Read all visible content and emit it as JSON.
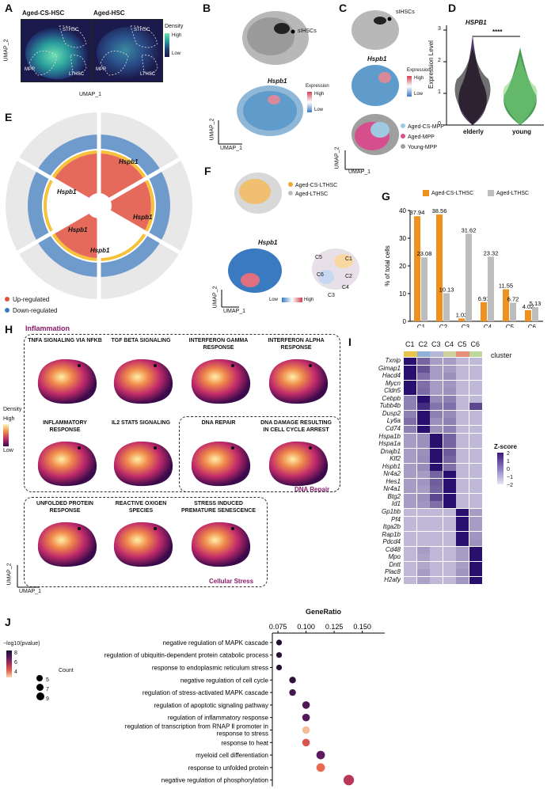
{
  "panels": {
    "A": {
      "label": "A",
      "title_left": "Aged-CS-HSC",
      "title_right": "Aged-HSC",
      "regions": [
        "STHSC",
        "MPP",
        "LTHSC"
      ],
      "legend_title": "Density",
      "legend_high": "High",
      "legend_low": "Low",
      "x_axis": "UMAP_1",
      "y_axis": "UMAP_2"
    },
    "B": {
      "label": "B",
      "annotation": "sIHSCs",
      "gene": "Hspb1",
      "legend_title": "Expression",
      "legend_high": "High",
      "legend_low": "Low",
      "x_axis": "UMAP_1",
      "y_axis": "UMAP_2"
    },
    "C": {
      "label": "C",
      "annotation": "sIHSCs",
      "gene": "Hspb1",
      "legend_title": "Expression",
      "legend_high": "High",
      "legend_low": "Low",
      "groups": [
        "Aged-CS-MPP",
        "Aged-MPP",
        "Young-MPP"
      ],
      "group_colors": [
        "#9fc9e0",
        "#d64f8c",
        "#9f9f9f"
      ],
      "x_axis": "UMAP_1",
      "y_axis": "UMAP_2"
    },
    "D": {
      "label": "D",
      "gene": "HSPB1",
      "y_axis": "Expression Level",
      "significance": "****",
      "groups": [
        "elderly",
        "young"
      ],
      "yticks": [
        "0",
        "1",
        "2",
        "3"
      ]
    },
    "E": {
      "label": "E",
      "gene_labels": [
        "Hspb1",
        "Hspb1",
        "Hspb1",
        "Hspb1",
        "Hspb1"
      ],
      "legend_up": "Up-regulated",
      "legend_down": "Down-regulated"
    },
    "F": {
      "label": "F",
      "groups": [
        "Aged-CS-LTHSC",
        "Aged-LTHSC"
      ],
      "group_colors": [
        "#f0a830",
        "#bdbdbd"
      ],
      "gene": "Hspb1",
      "legend_low": "Low",
      "legend_high": "High",
      "clusters": [
        "C5",
        "C1",
        "C6",
        "C2",
        "C4",
        "C3"
      ],
      "x_axis": "UMAP_1",
      "y_axis": "UMAP_2"
    },
    "G": {
      "label": "G"
    },
    "H": {
      "label": "H",
      "section_inflammation": "Inflammation",
      "section_dna": "DNA Repair",
      "section_stress": "Cellular Stress",
      "maps": [
        "TNFA SIGNALING VIA NFKB",
        "TGF BETA SIGNALING",
        "INTERFERON GAMMA RESPONSE",
        "INTERFERON ALPHA RESPONSE",
        "INFLAMMATORY RESPONSE",
        "IL2 STAT5 SIGNALING",
        "DNA REPAIR",
        "DNA DAMAGE RESULTING IN CELL CYCLE ARREST",
        "UNFOLDED PROTEIN RESPONSE",
        "REACTIVE OXIGEN SPECIES",
        "STRESS INDUCED PREMATURE SENESCENCE"
      ],
      "legend_title": "Density",
      "legend_high": "High",
      "legend_low": "Low",
      "x_axis": "UMAP_1",
      "y_axis": "UMAP_2"
    },
    "I": {
      "label": "I",
      "clusters": [
        "C1",
        "C2",
        "C3",
        "C4",
        "C5",
        "C6"
      ],
      "cluster_colors": [
        "#e8c44a",
        "#8fb0d9",
        "#b5b5d6",
        "#cfcfa0",
        "#e8907a",
        "#bcd89a"
      ],
      "cluster_title": "cluster",
      "legend_title": "Z-score",
      "legend_ticks": [
        "2",
        "1",
        "0",
        "−1",
        "−2"
      ],
      "genes": [
        "Txnip",
        "Gimap1",
        "Hacd4",
        "Mycn",
        "Cldn5",
        "Cebpb",
        "Tubb4b",
        "Dusp2",
        "Ly6a",
        "Cd74",
        "Hspa1b",
        "Hspa1a",
        "Dnajb1",
        "Klf2",
        "Hspb1",
        "Nr4a2",
        "Hes1",
        "Nr4a1",
        "Btg2",
        "Id1",
        "Gp1bb",
        "Pf4",
        "Itga2b",
        "Rap1b",
        "Pdcd4",
        "Cd48",
        "Mpo",
        "Dntt",
        "Plac8",
        "H2afy"
      ]
    },
    "J": {
      "label": "J",
      "title": "GeneRatio",
      "legend_pval_title": "−log10(pvalue)",
      "legend_pval_ticks": [
        "8",
        "6",
        "4"
      ],
      "legend_count_title": "Count",
      "legend_count_ticks": [
        "5",
        "7",
        "9"
      ]
    }
  },
  "chart_data": [
    {
      "type": "bar",
      "panel": "G",
      "ylabel": "% of total cells",
      "categories": [
        "C1",
        "C2",
        "C3",
        "C4",
        "C5",
        "C6"
      ],
      "ylim": [
        0,
        40
      ],
      "yticks": [
        0,
        10,
        20,
        30,
        40
      ],
      "series": [
        {
          "name": "Aged-CS-LTHSC",
          "color": "#f0901e",
          "values": [
            37.94,
            38.56,
            1.03,
            6.91,
            11.55,
            4.02
          ]
        },
        {
          "name": "Aged-LTHSC",
          "color": "#bdbdbd",
          "values": [
            23.08,
            10.13,
            31.62,
            23.32,
            6.72,
            5.13
          ]
        }
      ],
      "value_labels": [
        [
          "37.94",
          "38.56",
          "1.03",
          "6.91",
          "11.55",
          "4.02"
        ],
        [
          "23.08",
          "10.13",
          "31.62",
          "23.32",
          "6.72",
          "5.13"
        ]
      ]
    },
    {
      "type": "scatter",
      "panel": "J",
      "title": "GeneRatio",
      "xlim": [
        0.07,
        0.17
      ],
      "xticks": [
        "0.075",
        "0.100",
        "0.125",
        "0.150"
      ],
      "xtick_values": [
        0.075,
        0.1,
        0.125,
        0.15
      ],
      "terms": [
        "negative regulation of MAPK cascade",
        "regulation of ubiquitin-dependent protein catabolic process",
        "response to endoplasmic reticulum stress",
        "negative regulation of cell cycle",
        "regulation of stress-activated MAPK cascade",
        "regulation of apoptotic signaling pathway",
        "regulation of inflammatory response",
        "regulation of transcription from RNAP Ⅱ promoter in response to stress",
        "response to heat",
        "myeloid cell differentiation",
        "response to unfolded protein",
        "negative regulation of phosphorylation"
      ],
      "gene_ratio": [
        0.076,
        0.076,
        0.076,
        0.088,
        0.088,
        0.1,
        0.1,
        0.1,
        0.1,
        0.113,
        0.113,
        0.138
      ],
      "count": [
        6,
        6,
        6,
        7,
        7,
        8,
        8,
        8,
        8,
        9,
        9,
        11
      ],
      "neglog10p": [
        2.2,
        2.4,
        2.3,
        2.5,
        3.2,
        3.4,
        3.6,
        8.6,
        6.8,
        3.8,
        7.4,
        5.8
      ],
      "color_stops": [
        "#1a0f2e",
        "#5a1a5e",
        "#b0305a",
        "#e8604a",
        "#f8d8b0"
      ]
    },
    {
      "type": "heatmap",
      "panel": "I",
      "rows": [
        "Txnip",
        "Gimap1",
        "Hacd4",
        "Mycn",
        "Cldn5",
        "Cebpb",
        "Tubb4b",
        "Dusp2",
        "Ly6a",
        "Cd74",
        "Hspa1b",
        "Hspa1a",
        "Dnajb1",
        "Klf2",
        "Hspb1",
        "Nr4a2",
        "Hes1",
        "Nr4a1",
        "Btg2",
        "Id1",
        "Gp1bb",
        "Pf4",
        "Itga2b",
        "Rap1b",
        "Pdcd4",
        "Cd48",
        "Mpo",
        "Dntt",
        "Plac8",
        "H2afy"
      ],
      "cols": [
        "C1",
        "C2",
        "C3",
        "C4",
        "C5",
        "C6"
      ],
      "zscores": [
        [
          2,
          0.5,
          -0.5,
          -0.5,
          -1,
          -1
        ],
        [
          2,
          0.8,
          -0.5,
          -0.5,
          -1,
          -1
        ],
        [
          2,
          0.3,
          -0.5,
          -0.3,
          -1,
          -1
        ],
        [
          2,
          0.3,
          -0.5,
          -0.4,
          -1,
          -1
        ],
        [
          2,
          0.4,
          -0.5,
          -0.3,
          -1,
          -1
        ],
        [
          0,
          2,
          -0.2,
          0,
          -1,
          -1
        ],
        [
          0,
          1.5,
          0.2,
          0.3,
          -1,
          1
        ],
        [
          0,
          2,
          0,
          -0.2,
          -1,
          -1
        ],
        [
          0.3,
          2,
          -0.3,
          0,
          -1,
          -1
        ],
        [
          0,
          2,
          -0.3,
          0,
          -1,
          -1
        ],
        [
          -0.5,
          -0.3,
          2,
          0.5,
          -1,
          -1
        ],
        [
          -0.5,
          -0.3,
          2,
          0.5,
          -1,
          -1
        ],
        [
          -0.5,
          -0.3,
          2,
          0.7,
          -1,
          -1
        ],
        [
          -0.5,
          -0.2,
          2,
          0.5,
          -1,
          -1
        ],
        [
          -0.5,
          -0.2,
          2,
          0.3,
          -1,
          -1
        ],
        [
          -0.5,
          -0.5,
          0.5,
          2,
          -1,
          -1
        ],
        [
          -0.5,
          -0.4,
          0.6,
          2,
          -1,
          -1
        ],
        [
          -0.5,
          -0.5,
          0.5,
          2,
          -1,
          -1
        ],
        [
          -0.5,
          -0.3,
          1,
          2,
          -1,
          -1
        ],
        [
          -0.5,
          -0.4,
          0.3,
          2,
          -1,
          -1
        ],
        [
          -1,
          -1,
          -1,
          -1,
          2,
          -0.5
        ],
        [
          -1,
          -1,
          -1,
          -1,
          2,
          -0.5
        ],
        [
          -1,
          -1,
          -1,
          -1,
          2,
          -0.5
        ],
        [
          -1,
          -1,
          -1,
          -1,
          2,
          -0.4
        ],
        [
          -1,
          -1,
          -1,
          -1,
          2,
          -0.3
        ],
        [
          -1,
          -0.5,
          -1,
          -1,
          -0.5,
          2
        ],
        [
          -1,
          -0.6,
          -1,
          -1,
          -0.5,
          2
        ],
        [
          -1,
          -0.7,
          -1,
          -1,
          -0.5,
          2
        ],
        [
          -1,
          -0.5,
          -1,
          -1,
          -0.4,
          2
        ],
        [
          -1,
          -0.6,
          -1,
          -1,
          -0.4,
          2
        ]
      ]
    }
  ]
}
